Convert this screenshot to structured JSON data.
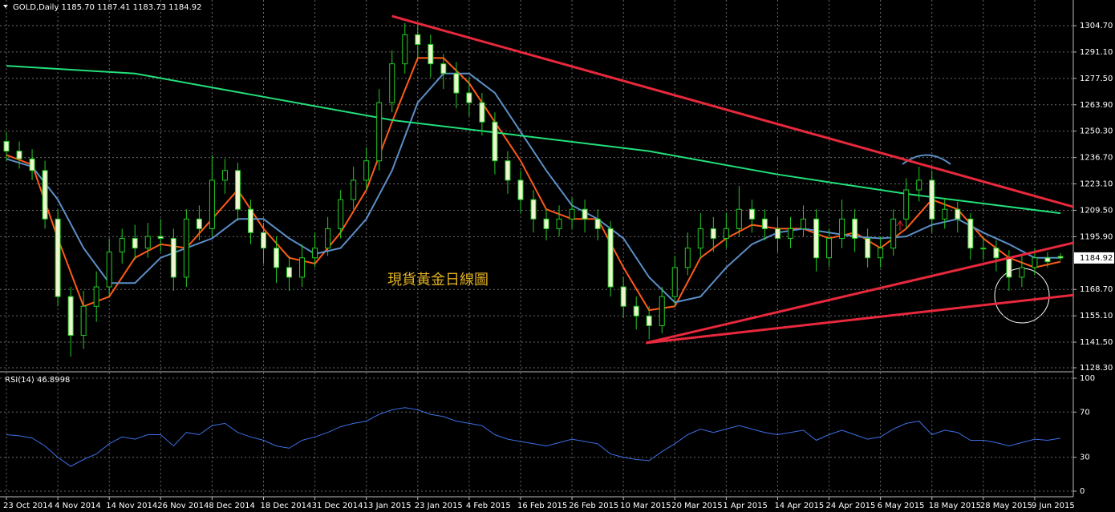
{
  "chart_data": [
    {
      "type": "candlestick",
      "title": "GOLD,Daily  1185.70 1187.41 1183.73 1184.92",
      "annotation": "現貨黃金日線圖",
      "xlim": [
        -1,
        166
      ],
      "ylim": [
        1127.06,
        1315.85
      ],
      "xticks": [
        {
          "value": 0,
          "label": "23 Oct 2014"
        },
        {
          "value": 8,
          "label": "4 Nov 2014"
        },
        {
          "value": 16,
          "label": "14 Nov 2014"
        },
        {
          "value": 24,
          "label": "26 Nov 2014"
        },
        {
          "value": 32,
          "label": "8 Dec 2014"
        },
        {
          "value": 40,
          "label": "18 Dec 2014"
        },
        {
          "value": 48,
          "label": "31 Dec 2014"
        },
        {
          "value": 56,
          "label": "13 Jan 2015"
        },
        {
          "value": 64,
          "label": "23 Jan 2015"
        },
        {
          "value": 72,
          "label": "4 Feb 2015"
        },
        {
          "value": 80,
          "label": "16 Feb 2015"
        },
        {
          "value": 88,
          "label": "26 Feb 2015"
        },
        {
          "value": 96,
          "label": "10 Mar 2015"
        },
        {
          "value": 104,
          "label": "20 Mar 2015"
        },
        {
          "value": 112,
          "label": "1 Apr 2015"
        },
        {
          "value": 120,
          "label": "14 Apr 2015"
        },
        {
          "value": 128,
          "label": "24 Apr 2015"
        },
        {
          "value": 136,
          "label": "6 May 2015"
        },
        {
          "value": 144,
          "label": "18 May 2015"
        },
        {
          "value": 152,
          "label": "28 May 2015"
        },
        {
          "value": 160,
          "label": "9 Jun 2015"
        }
      ],
      "yticks": [
        {
          "value": 1304.7,
          "label": "1304.70"
        },
        {
          "value": 1291.1,
          "label": "1291.10"
        },
        {
          "value": 1277.5,
          "label": "1277.50"
        },
        {
          "value": 1263.9,
          "label": "1263.90"
        },
        {
          "value": 1250.3,
          "label": "1250.30"
        },
        {
          "value": 1236.7,
          "label": "1236.70"
        },
        {
          "value": 1223.1,
          "label": "1223.10"
        },
        {
          "value": 1209.5,
          "label": "1209.50"
        },
        {
          "value": 1195.9,
          "label": "1195.90"
        },
        {
          "value": 1168.7,
          "label": "1168.70"
        },
        {
          "value": 1155.1,
          "label": "1155.10"
        },
        {
          "value": 1141.5,
          "label": "1141.50"
        },
        {
          "value": 1128.3,
          "label": "1128.30"
        }
      ],
      "grid": true,
      "last_price": 1184.92,
      "up_color": "#000000",
      "down_color": "#eef5d0",
      "wick_color": "#22cc22",
      "x": [
        0,
        2,
        4,
        6,
        8,
        10,
        12,
        14,
        16,
        18,
        20,
        22,
        24,
        26,
        28,
        30,
        32,
        34,
        36,
        38,
        40,
        42,
        44,
        46,
        48,
        50,
        52,
        54,
        56,
        58,
        60,
        62,
        64,
        66,
        68,
        70,
        72,
        74,
        76,
        78,
        80,
        82,
        84,
        86,
        88,
        90,
        92,
        94,
        96,
        98,
        100,
        102,
        104,
        106,
        108,
        110,
        112,
        114,
        116,
        118,
        120,
        122,
        124,
        126,
        128,
        130,
        132,
        134,
        136,
        138,
        140,
        142,
        144,
        146,
        148,
        150,
        152,
        154,
        156,
        158,
        160,
        162,
        164
      ],
      "candles": [
        [
          1245,
          1250,
          1235,
          1240
        ],
        [
          1240,
          1245,
          1231,
          1236
        ],
        [
          1236,
          1241,
          1225,
          1230
        ],
        [
          1230,
          1235,
          1200,
          1205
        ],
        [
          1205,
          1210,
          1160,
          1165
        ],
        [
          1165,
          1170,
          1134,
          1145
        ],
        [
          1145,
          1168,
          1138,
          1160
        ],
        [
          1160,
          1178,
          1152,
          1170
        ],
        [
          1170,
          1195,
          1165,
          1188
        ],
        [
          1188,
          1200,
          1182,
          1195
        ],
        [
          1195,
          1202,
          1184,
          1190
        ],
        [
          1190,
          1203,
          1185,
          1196
        ],
        [
          1196,
          1205,
          1188,
          1195
        ],
        [
          1195,
          1200,
          1168,
          1175
        ],
        [
          1175,
          1210,
          1170,
          1205
        ],
        [
          1205,
          1212,
          1194,
          1200
        ],
        [
          1200,
          1238,
          1196,
          1225
        ],
        [
          1225,
          1236,
          1218,
          1230
        ],
        [
          1230,
          1234,
          1204,
          1210
        ],
        [
          1210,
          1215,
          1192,
          1198
        ],
        [
          1198,
          1203,
          1182,
          1190
        ],
        [
          1190,
          1196,
          1172,
          1180
        ],
        [
          1180,
          1186,
          1168,
          1175
        ],
        [
          1175,
          1192,
          1170,
          1185
        ],
        [
          1185,
          1198,
          1180,
          1190
        ],
        [
          1190,
          1206,
          1186,
          1200
        ],
        [
          1200,
          1220,
          1195,
          1215
        ],
        [
          1215,
          1232,
          1210,
          1225
        ],
        [
          1225,
          1242,
          1220,
          1235
        ],
        [
          1235,
          1272,
          1230,
          1265
        ],
        [
          1265,
          1292,
          1260,
          1285
        ],
        [
          1285,
          1306,
          1280,
          1300
        ],
        [
          1300,
          1305,
          1288,
          1295
        ],
        [
          1295,
          1300,
          1278,
          1285
        ],
        [
          1285,
          1290,
          1272,
          1280
        ],
        [
          1280,
          1286,
          1262,
          1270
        ],
        [
          1270,
          1278,
          1258,
          1265
        ],
        [
          1265,
          1270,
          1248,
          1255
        ],
        [
          1255,
          1260,
          1228,
          1235
        ],
        [
          1235,
          1240,
          1218,
          1225
        ],
        [
          1225,
          1230,
          1208,
          1215
        ],
        [
          1215,
          1220,
          1198,
          1205
        ],
        [
          1205,
          1210,
          1194,
          1200
        ],
        [
          1200,
          1212,
          1196,
          1205
        ],
        [
          1205,
          1216,
          1200,
          1210
        ],
        [
          1210,
          1215,
          1198,
          1205
        ],
        [
          1205,
          1210,
          1194,
          1200
        ],
        [
          1200,
          1204,
          1165,
          1170
        ],
        [
          1170,
          1175,
          1154,
          1160
        ],
        [
          1160,
          1165,
          1148,
          1155
        ],
        [
          1155,
          1160,
          1143,
          1150
        ],
        [
          1150,
          1170,
          1146,
          1165
        ],
        [
          1165,
          1186,
          1160,
          1180
        ],
        [
          1180,
          1198,
          1176,
          1190
        ],
        [
          1190,
          1208,
          1185,
          1200
        ],
        [
          1200,
          1206,
          1188,
          1195
        ],
        [
          1195,
          1208,
          1190,
          1200
        ],
        [
          1200,
          1222,
          1196,
          1210
        ],
        [
          1210,
          1215,
          1198,
          1205
        ],
        [
          1205,
          1210,
          1194,
          1200
        ],
        [
          1200,
          1206,
          1188,
          1195
        ],
        [
          1195,
          1206,
          1190,
          1200
        ],
        [
          1200,
          1212,
          1196,
          1205
        ],
        [
          1205,
          1210,
          1178,
          1185
        ],
        [
          1185,
          1200,
          1180,
          1195
        ],
        [
          1195,
          1215,
          1190,
          1205
        ],
        [
          1205,
          1210,
          1188,
          1195
        ],
        [
          1195,
          1200,
          1180,
          1185
        ],
        [
          1185,
          1196,
          1180,
          1190
        ],
        [
          1190,
          1210,
          1186,
          1205
        ],
        [
          1205,
          1226,
          1200,
          1220
        ],
        [
          1220,
          1232,
          1214,
          1225
        ],
        [
          1225,
          1230,
          1198,
          1205
        ],
        [
          1205,
          1216,
          1200,
          1210
        ],
        [
          1210,
          1214,
          1198,
          1205
        ],
        [
          1205,
          1208,
          1184,
          1190
        ],
        [
          1190,
          1196,
          1184,
          1190
        ],
        [
          1190,
          1194,
          1178,
          1185
        ],
        [
          1185,
          1189,
          1168,
          1175
        ],
        [
          1175,
          1186,
          1170,
          1180
        ],
        [
          1180,
          1190,
          1176,
          1185
        ],
        [
          1185,
          1188,
          1180,
          1183
        ],
        [
          1185.7,
          1187.41,
          1183.73,
          1184.92
        ]
      ],
      "lines": [
        {
          "color": "#ff5a1a",
          "x": [
            0,
            4,
            8,
            12,
            16,
            20,
            24,
            28,
            32,
            36,
            40,
            44,
            48,
            52,
            56,
            60,
            64,
            68,
            72,
            76,
            80,
            84,
            88,
            92,
            96,
            100,
            104,
            108,
            112,
            116,
            120,
            124,
            128,
            132,
            136,
            140,
            144,
            148,
            152,
            156,
            160,
            164
          ],
          "values": [
            1238,
            1233,
            1195,
            1160,
            1165,
            1185,
            1192,
            1190,
            1205,
            1220,
            1200,
            1185,
            1182,
            1198,
            1220,
            1255,
            1288,
            1288,
            1275,
            1255,
            1235,
            1210,
            1205,
            1205,
            1180,
            1158,
            1160,
            1185,
            1195,
            1202,
            1200,
            1200,
            1195,
            1198,
            1190,
            1200,
            1215,
            1210,
            1195,
            1185,
            1180,
            1183
          ]
        },
        {
          "color": "#5b8fc8",
          "x": [
            0,
            4,
            8,
            12,
            16,
            20,
            24,
            28,
            32,
            36,
            40,
            44,
            48,
            52,
            56,
            60,
            64,
            68,
            72,
            76,
            80,
            84,
            88,
            92,
            96,
            100,
            104,
            108,
            112,
            116,
            120,
            124,
            128,
            132,
            136,
            140,
            144,
            148,
            152,
            156,
            160,
            164
          ],
          "values": [
            1236,
            1232,
            1215,
            1190,
            1172,
            1172,
            1185,
            1190,
            1195,
            1205,
            1205,
            1195,
            1187,
            1190,
            1205,
            1230,
            1265,
            1280,
            1280,
            1270,
            1250,
            1230,
            1212,
            1205,
            1195,
            1175,
            1162,
            1165,
            1180,
            1192,
            1198,
            1200,
            1198,
            1196,
            1195,
            1196,
            1202,
            1205,
            1198,
            1192,
            1185,
            1185
          ]
        },
        {
          "color": "#22e07a",
          "x": [
            0,
            20,
            40,
            60,
            80,
            100,
            120,
            140,
            164
          ],
          "values": [
            1284,
            1280,
            1268,
            1256,
            1248,
            1240,
            1228,
            1218,
            1208
          ]
        }
      ],
      "trendlines_color": "#e8283c",
      "trendlines": [
        {
          "x": [
            60,
            166
          ],
          "y": [
            1309.6,
            1211.3
          ]
        },
        {
          "x": [
            99.5,
            166
          ],
          "y": [
            1141.1,
            1192.7
          ]
        },
        {
          "x": [
            99.5,
            166
          ],
          "y": [
            1141.1,
            1165.8
          ]
        }
      ]
    },
    {
      "type": "line",
      "title": "RSI(14) 46.8998",
      "xlim": [
        -1,
        166
      ],
      "ylim": [
        0,
        100
      ],
      "yticks": [
        100,
        70,
        30,
        0
      ],
      "color": "#3c6ee6",
      "x": [
        0,
        2,
        4,
        6,
        8,
        10,
        12,
        14,
        16,
        18,
        20,
        22,
        24,
        26,
        28,
        30,
        32,
        34,
        36,
        38,
        40,
        42,
        44,
        46,
        48,
        50,
        52,
        54,
        56,
        58,
        60,
        62,
        64,
        66,
        68,
        70,
        72,
        74,
        76,
        78,
        80,
        82,
        84,
        86,
        88,
        90,
        92,
        94,
        96,
        98,
        100,
        102,
        104,
        106,
        108,
        110,
        112,
        114,
        116,
        118,
        120,
        122,
        124,
        126,
        128,
        130,
        132,
        134,
        136,
        138,
        140,
        142,
        144,
        146,
        148,
        150,
        152,
        154,
        156,
        158,
        160,
        162,
        164
      ],
      "values": [
        50,
        49,
        47,
        40,
        30,
        22,
        28,
        33,
        42,
        48,
        46,
        50,
        50,
        40,
        52,
        50,
        58,
        60,
        52,
        48,
        45,
        40,
        38,
        45,
        48,
        52,
        57,
        60,
        62,
        68,
        72,
        74,
        72,
        68,
        66,
        62,
        60,
        58,
        50,
        46,
        44,
        42,
        40,
        43,
        46,
        44,
        42,
        33,
        30,
        28,
        27,
        35,
        42,
        50,
        55,
        52,
        55,
        58,
        55,
        52,
        50,
        52,
        54,
        45,
        50,
        54,
        50,
        46,
        48,
        55,
        60,
        62,
        50,
        54,
        52,
        45,
        45,
        43,
        40,
        43,
        46,
        45,
        46.8998
      ]
    }
  ]
}
